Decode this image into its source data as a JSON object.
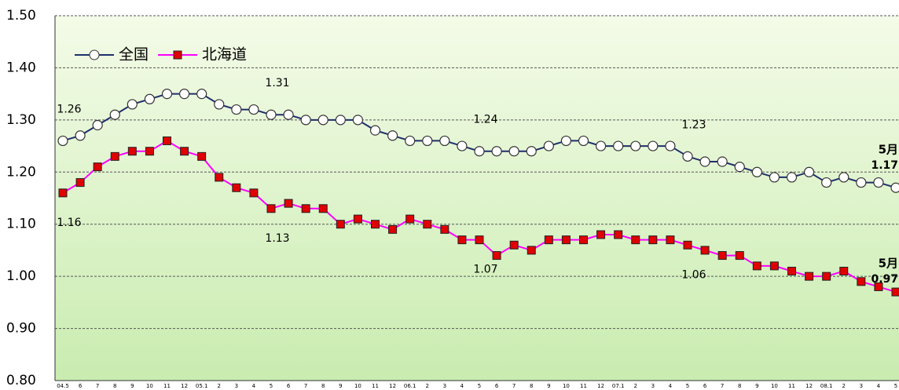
{
  "chart_data": {
    "type": "line",
    "categories": [
      "04.5",
      "6",
      "7",
      "8",
      "9",
      "10",
      "11",
      "12",
      "05.1",
      "2",
      "3",
      "4",
      "5",
      "6",
      "7",
      "8",
      "9",
      "10",
      "11",
      "12",
      "06.1",
      "2",
      "3",
      "4",
      "5",
      "6",
      "7",
      "8",
      "9",
      "10",
      "11",
      "12",
      "07.1",
      "2",
      "3",
      "4",
      "5",
      "6",
      "7",
      "8",
      "9",
      "10",
      "11",
      "12",
      "08.1",
      "2",
      "3",
      "4",
      "5"
    ],
    "series": [
      {
        "name": "全国",
        "color": "#1f2f6e",
        "marker": "circle",
        "values": [
          1.26,
          1.27,
          1.29,
          1.31,
          1.33,
          1.34,
          1.35,
          1.35,
          1.35,
          1.33,
          1.32,
          1.32,
          1.31,
          1.31,
          1.3,
          1.3,
          1.3,
          1.3,
          1.28,
          1.27,
          1.26,
          1.26,
          1.26,
          1.25,
          1.24,
          1.24,
          1.24,
          1.24,
          1.25,
          1.26,
          1.26,
          1.25,
          1.25,
          1.25,
          1.25,
          1.25,
          1.23,
          1.22,
          1.22,
          1.21,
          1.2,
          1.19,
          1.19,
          1.2,
          1.18,
          1.19,
          1.18,
          1.18,
          1.17
        ],
        "value_labels": [
          "1.26",
          null,
          null,
          null,
          null,
          null,
          null,
          null,
          null,
          null,
          null,
          null,
          "1.31",
          null,
          null,
          null,
          null,
          null,
          null,
          null,
          null,
          null,
          null,
          null,
          "1.24",
          null,
          null,
          null,
          null,
          null,
          null,
          null,
          null,
          null,
          null,
          null,
          "1.23",
          null,
          null,
          null,
          null,
          null,
          null,
          null,
          null,
          null,
          null,
          null,
          "1.17"
        ]
      },
      {
        "name": "北海道",
        "color": "#ff00ff",
        "marker": "square",
        "marker_color": "#e00000",
        "values": [
          1.16,
          1.18,
          1.21,
          1.23,
          1.24,
          1.24,
          1.26,
          1.24,
          1.23,
          1.19,
          1.17,
          1.16,
          1.13,
          1.14,
          1.13,
          1.13,
          1.1,
          1.11,
          1.1,
          1.09,
          1.11,
          1.1,
          1.09,
          1.07,
          1.07,
          1.04,
          1.06,
          1.05,
          1.07,
          1.07,
          1.07,
          1.08,
          1.08,
          1.07,
          1.07,
          1.07,
          1.06,
          1.05,
          1.04,
          1.04,
          1.02,
          1.02,
          1.01,
          1.0,
          1.0,
          1.01,
          0.99,
          0.98,
          0.97
        ],
        "value_labels": [
          "1.16",
          null,
          null,
          null,
          null,
          null,
          null,
          null,
          null,
          null,
          null,
          null,
          "1.13",
          null,
          null,
          null,
          null,
          null,
          null,
          null,
          null,
          null,
          null,
          null,
          "1.07",
          null,
          null,
          null,
          null,
          null,
          null,
          null,
          null,
          null,
          null,
          null,
          "1.06",
          null,
          null,
          null,
          null,
          null,
          null,
          null,
          null,
          null,
          null,
          null,
          "0.97"
        ]
      }
    ],
    "annotations": [
      "5月",
      "5月"
    ],
    "ylim": [
      0.8,
      1.5
    ],
    "yticks": [
      {
        "value": 0.8,
        "label": "0.80"
      },
      {
        "value": 0.9,
        "label": "0.90"
      },
      {
        "value": 1.0,
        "label": "1.00"
      },
      {
        "value": 1.1,
        "label": "1.10"
      },
      {
        "value": 1.2,
        "label": "1.20"
      },
      {
        "value": 1.3,
        "label": "1.30"
      },
      {
        "value": 1.4,
        "label": "1.40"
      },
      {
        "value": 1.5,
        "label": "1.50"
      }
    ],
    "grid": true,
    "legend": "upper left"
  }
}
